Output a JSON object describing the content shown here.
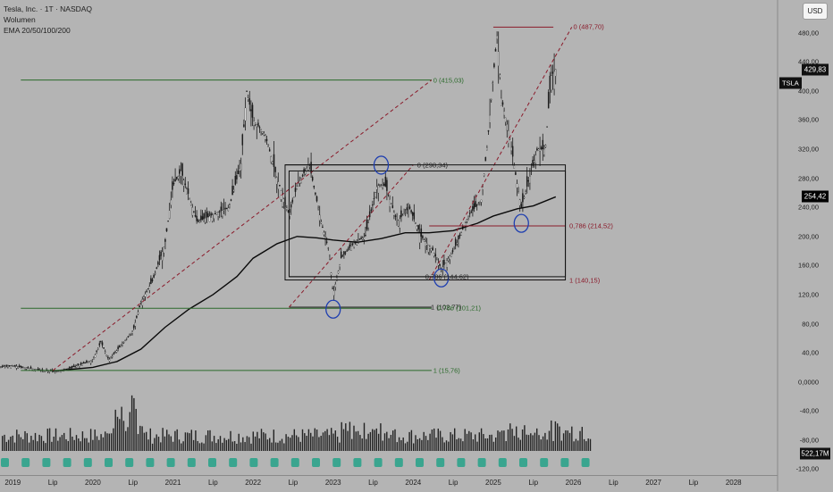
{
  "legend": {
    "symbol_line": "Tesla, Inc. · 1T · NASDAQ",
    "volume_label": "Wolumen",
    "ema_label": "EMA 20/50/100/200"
  },
  "currency_button": "USD",
  "price_axis": {
    "ticks": [
      "480,00",
      "440,00",
      "400,00",
      "360,00",
      "320,00",
      "280,00",
      "240,00",
      "200,00",
      "160,00",
      "120,00",
      "80,00",
      "40,00",
      "0,0000",
      "-40,00",
      "-80,00",
      "-120,00"
    ],
    "tick_values": [
      480,
      440,
      400,
      360,
      320,
      280,
      240,
      200,
      160,
      120,
      80,
      40,
      0,
      -40,
      -80,
      -120
    ],
    "range": [
      -128,
      525
    ]
  },
  "badges": {
    "symbol": "TSLA",
    "last_price": "429,83",
    "last_price_value": 429.83,
    "ema_value": "254,42",
    "ema_value_num": 254.42,
    "volume_value": "522,17M"
  },
  "time_axis": {
    "labels": [
      "2019",
      "Lip",
      "2020",
      "Lip",
      "2021",
      "Lip",
      "2022",
      "Lip",
      "2023",
      "Lip",
      "2024",
      "Lip",
      "2025",
      "Lip",
      "2026",
      "Lip",
      "2027",
      "Lip",
      "2028"
    ],
    "label_years": [
      2019,
      2019.5,
      2020,
      2020.5,
      2021,
      2021.5,
      2022,
      2022.5,
      2023,
      2023.5,
      2024,
      2024.5,
      2025,
      2025.5,
      2026,
      2026.5,
      2027,
      2027.5,
      2028
    ],
    "range": [
      2018.84,
      2028.55
    ]
  },
  "fib_labels": [
    {
      "text": "0 (487,70)",
      "price": 487.7,
      "color": "#8a1a2a"
    },
    {
      "text": "0 (415,03)",
      "price": 415.03,
      "color": "#2b6a2b"
    },
    {
      "text": "0 (298,34)",
      "price": 298.34,
      "color": "#222222"
    },
    {
      "text": "0,786 (214,52)",
      "price": 214.52,
      "color": "#8a1a2a"
    },
    {
      "text": "0,786 (144,62)",
      "price": 144.62,
      "color": "#222222"
    },
    {
      "text": "1 (140,15)",
      "price": 140.15,
      "color": "#8a1a2a"
    },
    {
      "text": "1 (102,77)",
      "price": 102.77,
      "color": "#222222"
    },
    {
      "text": "0,786 (101,21)",
      "price": 101.21,
      "color": "#2b6a2b"
    },
    {
      "text": "1 (15,76)",
      "price": 15.76,
      "color": "#2b6a2b"
    }
  ],
  "chart_data": {
    "type": "candlestick",
    "symbol": "TSLA",
    "interval": "1T",
    "price_path": [
      [
        2018.85,
        21
      ],
      [
        2019.0,
        22
      ],
      [
        2019.2,
        19
      ],
      [
        2019.4,
        15
      ],
      [
        2019.6,
        15
      ],
      [
        2019.8,
        22
      ],
      [
        2020.0,
        30
      ],
      [
        2020.1,
        55
      ],
      [
        2020.2,
        30
      ],
      [
        2020.35,
        50
      ],
      [
        2020.5,
        70
      ],
      [
        2020.6,
        110
      ],
      [
        2020.75,
        140
      ],
      [
        2020.9,
        190
      ],
      [
        2021.0,
        270
      ],
      [
        2021.1,
        290
      ],
      [
        2021.3,
        220
      ],
      [
        2021.5,
        230
      ],
      [
        2021.7,
        240
      ],
      [
        2021.85,
        300
      ],
      [
        2021.92,
        400
      ],
      [
        2022.0,
        360
      ],
      [
        2022.15,
        340
      ],
      [
        2022.3,
        280
      ],
      [
        2022.45,
        230
      ],
      [
        2022.55,
        270
      ],
      [
        2022.7,
        300
      ],
      [
        2022.85,
        220
      ],
      [
        2022.95,
        180
      ],
      [
        2023.0,
        120
      ],
      [
        2023.1,
        170
      ],
      [
        2023.25,
        190
      ],
      [
        2023.4,
        200
      ],
      [
        2023.55,
        270
      ],
      [
        2023.65,
        270
      ],
      [
        2023.8,
        220
      ],
      [
        2023.95,
        240
      ],
      [
        2024.1,
        200
      ],
      [
        2024.25,
        180
      ],
      [
        2024.35,
        155
      ],
      [
        2024.5,
        180
      ],
      [
        2024.7,
        230
      ],
      [
        2024.85,
        250
      ],
      [
        2024.92,
        320
      ],
      [
        2025.0,
        420
      ],
      [
        2025.05,
        480
      ],
      [
        2025.1,
        390
      ],
      [
        2025.2,
        340
      ],
      [
        2025.3,
        270
      ],
      [
        2025.35,
        240
      ],
      [
        2025.45,
        280
      ],
      [
        2025.55,
        320
      ],
      [
        2025.65,
        320
      ],
      [
        2025.72,
        420
      ],
      [
        2025.78,
        430
      ]
    ],
    "ema200": [
      [
        2019.5,
        15
      ],
      [
        2020.0,
        20
      ],
      [
        2020.3,
        28
      ],
      [
        2020.6,
        45
      ],
      [
        2020.9,
        75
      ],
      [
        2021.2,
        100
      ],
      [
        2021.5,
        120
      ],
      [
        2021.8,
        145
      ],
      [
        2022.0,
        170
      ],
      [
        2022.3,
        190
      ],
      [
        2022.55,
        200
      ],
      [
        2022.8,
        198
      ],
      [
        2023.0,
        195
      ],
      [
        2023.3,
        192
      ],
      [
        2023.6,
        197
      ],
      [
        2023.9,
        205
      ],
      [
        2024.2,
        205
      ],
      [
        2024.5,
        208
      ],
      [
        2024.8,
        218
      ],
      [
        2025.0,
        228
      ],
      [
        2025.3,
        238
      ],
      [
        2025.5,
        242
      ],
      [
        2025.78,
        254.42
      ]
    ],
    "fib_levels": [
      487.7,
      415.03,
      298.34,
      214.52,
      144.62,
      140.15,
      102.77,
      101.21,
      15.76
    ],
    "rectangles": [
      {
        "x": [
          2022.4,
          2025.9
        ],
        "y": [
          140.15,
          298.34
        ]
      }
    ],
    "circles": [
      {
        "x": 2023.0,
        "y": 100
      },
      {
        "x": 2023.6,
        "y": 298
      },
      {
        "x": 2024.35,
        "y": 143
      },
      {
        "x": 2025.35,
        "y": 218
      }
    ],
    "last_price": 429.83,
    "last_volume": "522,17M"
  }
}
